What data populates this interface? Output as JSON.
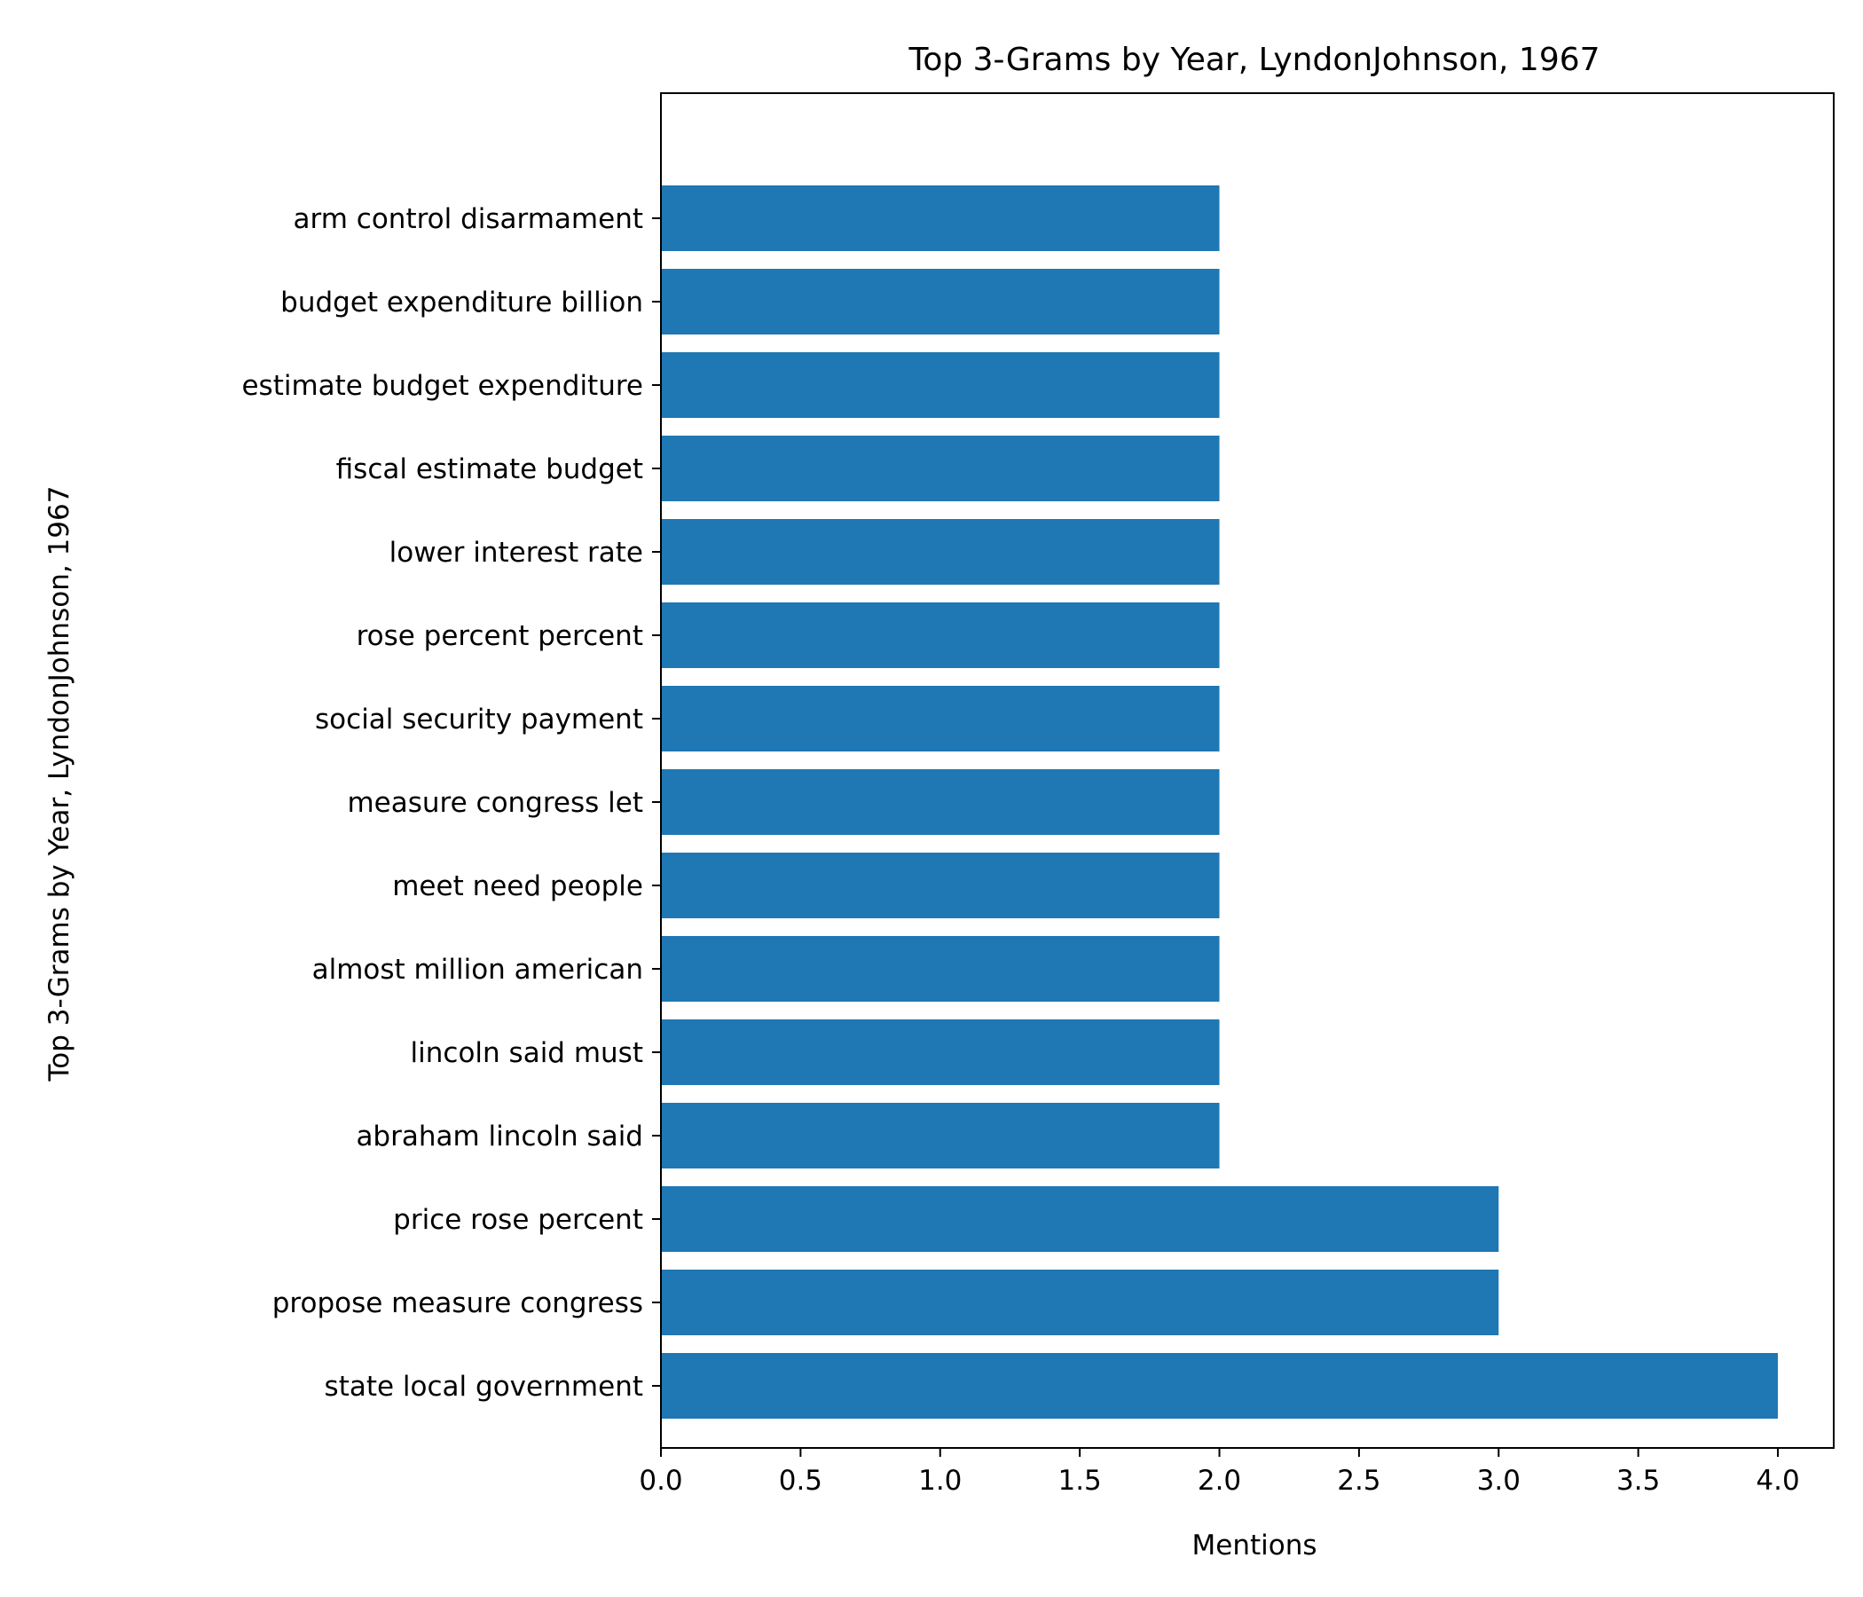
{
  "chart_data": {
    "type": "bar",
    "orientation": "horizontal",
    "title": "Top 3-Grams by Year, LyndonJohnson, 1967",
    "xlabel": "Mentions",
    "ylabel": "Top 3-Grams by Year, LyndonJohnson, 1967",
    "xlim": [
      0,
      4.2
    ],
    "xticks": [
      "0.0",
      "0.5",
      "1.0",
      "1.5",
      "2.0",
      "2.5",
      "3.0",
      "3.5",
      "4.0"
    ],
    "grid": false,
    "bar_color": "#1f77b4",
    "categories": [
      "state local government",
      "propose measure congress",
      "price rose percent",
      "abraham lincoln said",
      "lincoln said must",
      "almost million american",
      "meet need people",
      "measure congress let",
      "social security payment",
      "rose percent percent",
      "lower interest rate",
      "fiscal estimate budget",
      "estimate budget expenditure",
      "budget expenditure billion",
      "arm control disarmament"
    ],
    "values": [
      4,
      3,
      3,
      2,
      2,
      2,
      2,
      2,
      2,
      2,
      2,
      2,
      2,
      2,
      2
    ]
  }
}
